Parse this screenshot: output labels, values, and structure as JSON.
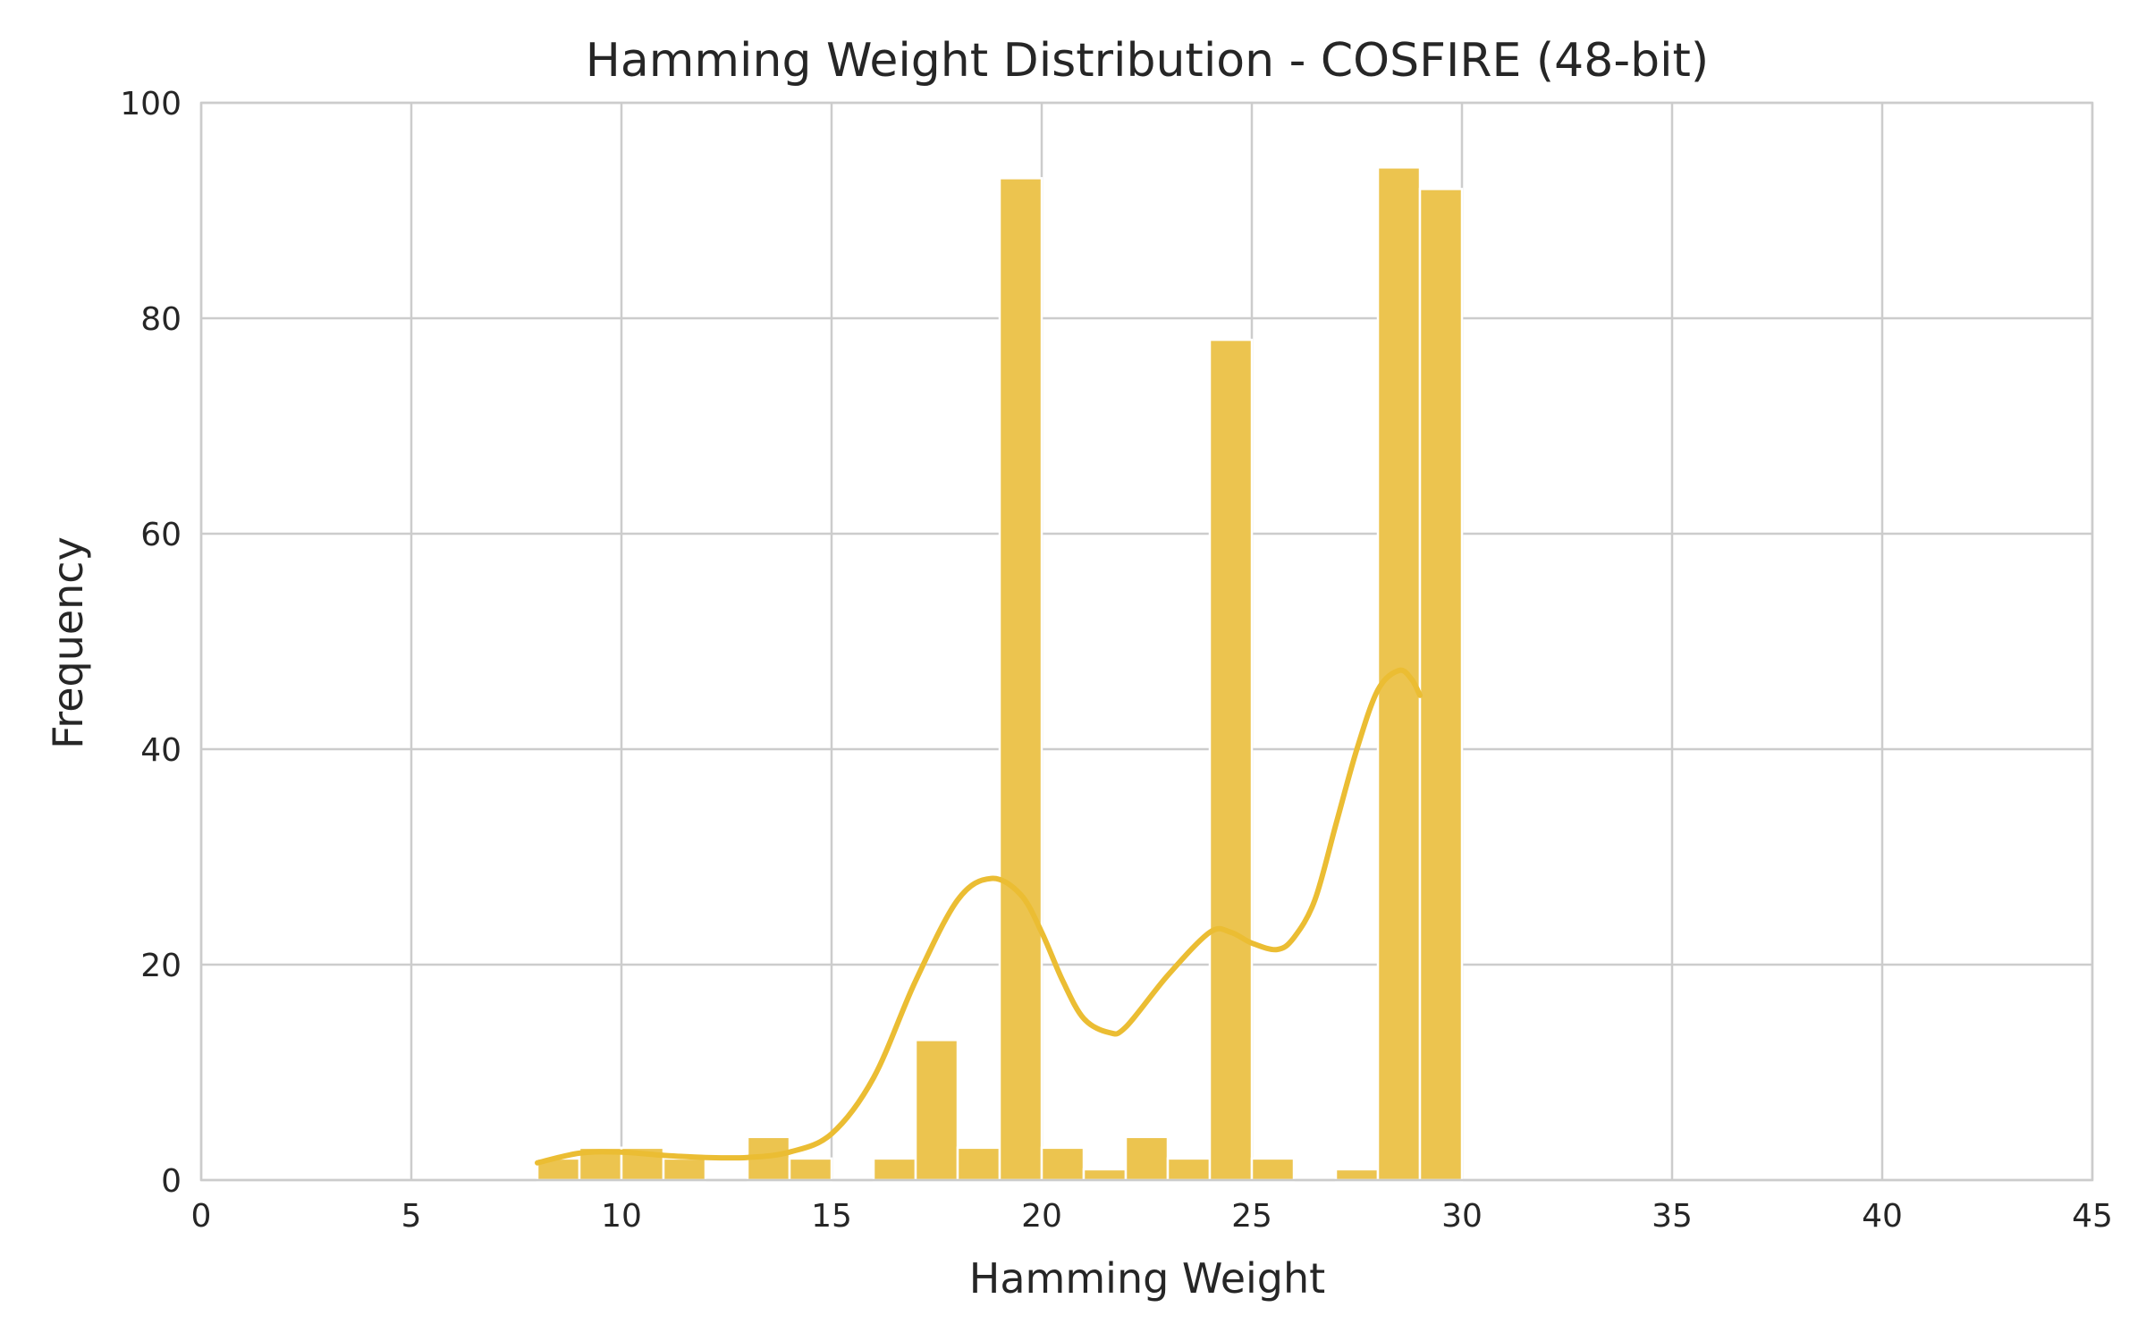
{
  "chart_data": {
    "type": "bar",
    "title": "Hamming Weight Distribution - COSFIRE (48-bit)",
    "xlabel": "Hamming Weight",
    "ylabel": "Frequency",
    "xlim": [
      0,
      45
    ],
    "ylim": [
      0,
      100
    ],
    "xticks": [
      0,
      5,
      10,
      15,
      20,
      25,
      30,
      35,
      40,
      45
    ],
    "yticks": [
      0,
      20,
      40,
      60,
      80,
      100
    ],
    "grid": true,
    "bin_width": 1,
    "bins": [
      {
        "x": 8,
        "count": 2
      },
      {
        "x": 9,
        "count": 3
      },
      {
        "x": 10,
        "count": 3
      },
      {
        "x": 11,
        "count": 2
      },
      {
        "x": 13,
        "count": 4
      },
      {
        "x": 14,
        "count": 2
      },
      {
        "x": 16,
        "count": 2
      },
      {
        "x": 17,
        "count": 13
      },
      {
        "x": 18,
        "count": 3
      },
      {
        "x": 19,
        "count": 93
      },
      {
        "x": 20,
        "count": 3
      },
      {
        "x": 21,
        "count": 1
      },
      {
        "x": 22,
        "count": 4
      },
      {
        "x": 23,
        "count": 2
      },
      {
        "x": 24,
        "count": 78
      },
      {
        "x": 25,
        "count": 2
      },
      {
        "x": 27,
        "count": 1
      },
      {
        "x": 28,
        "count": 94
      },
      {
        "x": 29,
        "count": 92
      }
    ],
    "kde": [
      [
        8,
        1.6
      ],
      [
        9,
        2.5
      ],
      [
        10,
        2.6
      ],
      [
        11,
        2.3
      ],
      [
        12,
        2.1
      ],
      [
        13,
        2.1
      ],
      [
        14,
        2.6
      ],
      [
        15,
        4.3
      ],
      [
        16,
        9.5
      ],
      [
        17,
        18.5
      ],
      [
        18,
        26
      ],
      [
        18.8,
        28
      ],
      [
        19.5,
        26.5
      ],
      [
        20,
        23
      ],
      [
        20.5,
        18.5
      ],
      [
        21,
        15
      ],
      [
        21.6,
        13.7
      ],
      [
        22,
        14.2
      ],
      [
        23,
        19
      ],
      [
        24,
        23
      ],
      [
        24.5,
        23
      ],
      [
        25,
        22
      ],
      [
        25.6,
        21.4
      ],
      [
        26,
        22.5
      ],
      [
        26.5,
        26
      ],
      [
        27,
        33
      ],
      [
        27.5,
        40
      ],
      [
        28,
        45.5
      ],
      [
        28.5,
        47.3
      ],
      [
        28.8,
        46.5
      ],
      [
        29,
        45
      ]
    ],
    "colors": {
      "bar": "#ecc44f",
      "line": "#ebbd33",
      "grid": "#cccccc",
      "text": "#262626"
    }
  }
}
